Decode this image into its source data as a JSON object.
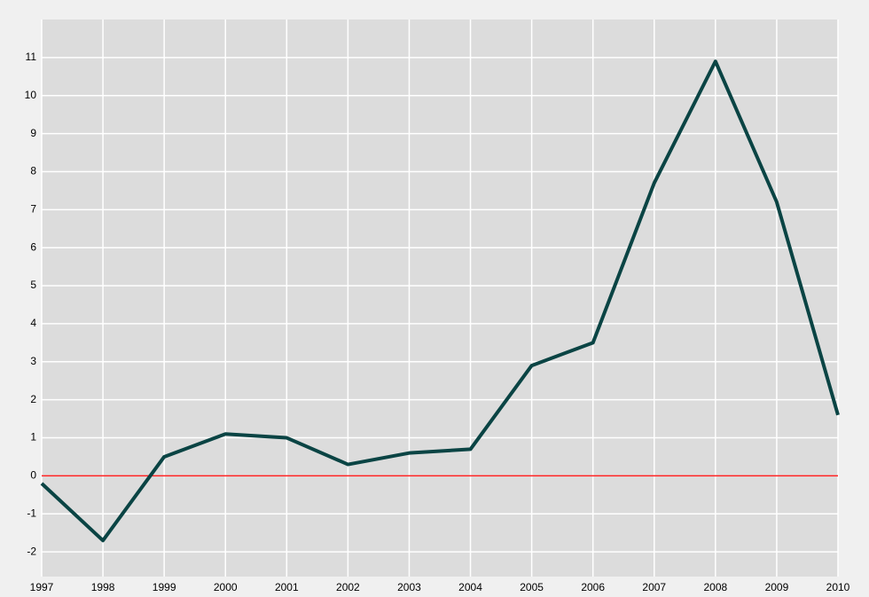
{
  "chart_data": {
    "type": "line",
    "x": [
      1997,
      1998,
      1999,
      2000,
      2001,
      2002,
      2003,
      2004,
      2005,
      2006,
      2007,
      2008,
      2009,
      2010
    ],
    "series": [
      {
        "color": "#0a4444",
        "values": [
          -0.2,
          -1.7,
          0.5,
          1.1,
          1.0,
          0.3,
          0.6,
          0.7,
          2.9,
          3.5,
          7.7,
          10.9,
          7.2,
          1.6
        ]
      }
    ],
    "xlim": [
      1997,
      2010
    ],
    "xticks": [
      1997,
      1998,
      1999,
      2000,
      2001,
      2002,
      2003,
      2004,
      2005,
      2006,
      2007,
      2008,
      2009,
      2010
    ],
    "ylim": [
      -2.65,
      12
    ],
    "yticks": [
      -2,
      -1,
      0,
      1,
      2,
      3,
      4,
      5,
      6,
      7,
      8,
      9,
      10,
      11
    ],
    "grid": true,
    "reference_line": {
      "value": 0,
      "color": "#ff2020"
    }
  }
}
